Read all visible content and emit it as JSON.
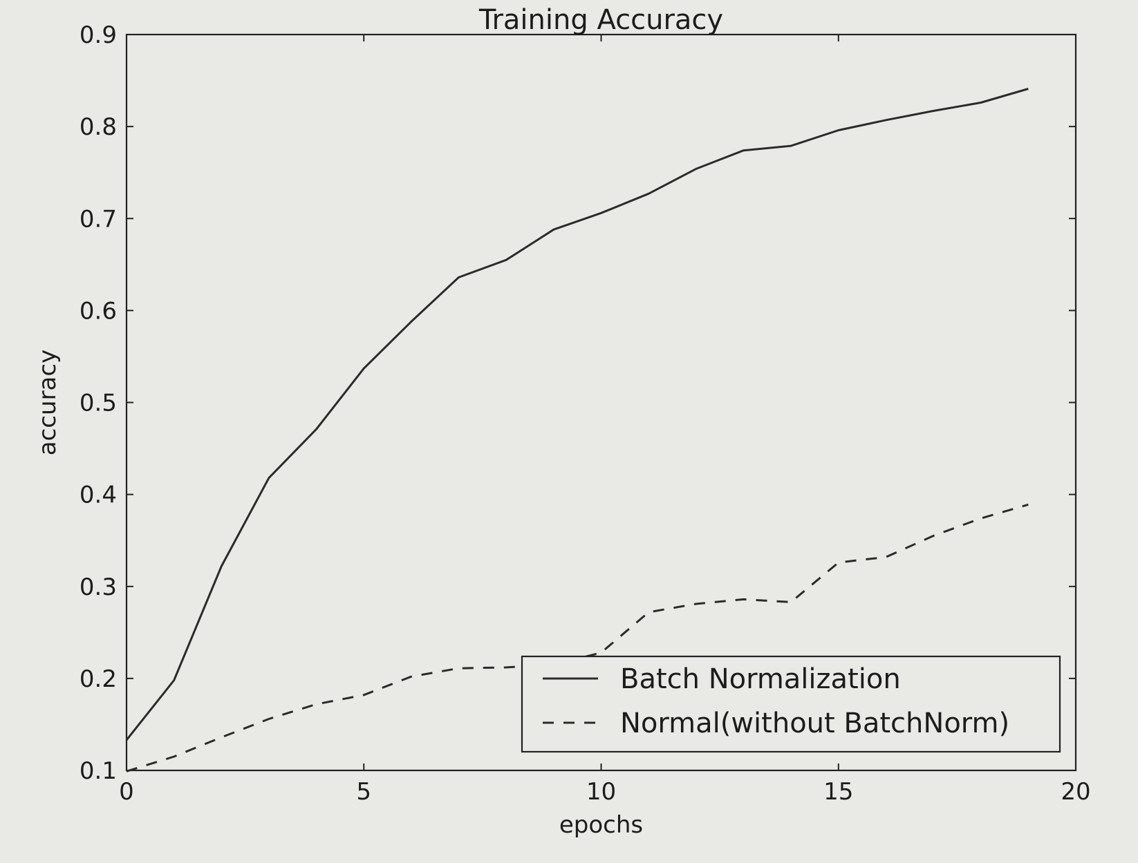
{
  "chart_data": {
    "type": "line",
    "title": "Training Accuracy",
    "xlabel": "epochs",
    "ylabel": "accuracy",
    "xlim": [
      0,
      20
    ],
    "ylim": [
      0.1,
      0.9
    ],
    "xticks": [
      0,
      5,
      10,
      15,
      20
    ],
    "yticks": [
      0.1,
      0.2,
      0.3,
      0.4,
      0.5,
      0.6,
      0.7,
      0.8,
      0.9
    ],
    "xtick_labels": [
      "0",
      "5",
      "10",
      "15",
      "20"
    ],
    "ytick_labels": [
      "0.1",
      "0.2",
      "0.3",
      "0.4",
      "0.5",
      "0.6",
      "0.7",
      "0.8",
      "0.9"
    ],
    "grid": false,
    "legend_position": "lower-right",
    "x": [
      0,
      1,
      2,
      3,
      4,
      5,
      6,
      7,
      8,
      9,
      10,
      11,
      12,
      13,
      14,
      15,
      16,
      17,
      18,
      19
    ],
    "series": [
      {
        "name": "Batch Normalization",
        "style": "solid",
        "color": "#2b2b2b",
        "values": [
          0.133,
          0.198,
          0.322,
          0.418,
          0.471,
          0.537,
          0.588,
          0.636,
          0.655,
          0.688,
          0.706,
          0.727,
          0.754,
          0.774,
          0.779,
          0.796,
          0.807,
          0.817,
          0.826,
          0.841
        ]
      },
      {
        "name": "Normal(without BatchNorm)",
        "style": "dashed",
        "color": "#2b2b2b",
        "values": [
          0.099,
          0.115,
          0.136,
          0.156,
          0.172,
          0.182,
          0.202,
          0.211,
          0.212,
          0.215,
          0.228,
          0.272,
          0.281,
          0.286,
          0.283,
          0.326,
          0.332,
          0.355,
          0.374,
          0.389
        ]
      }
    ]
  }
}
